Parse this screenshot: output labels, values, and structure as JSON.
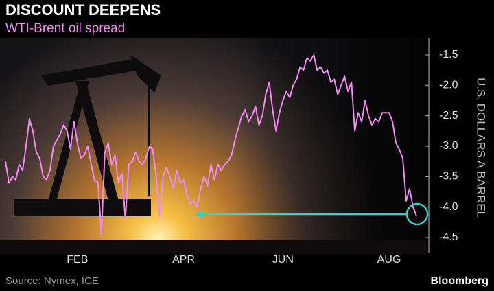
{
  "chart_data": {
    "type": "line",
    "title": "DISCOUNT DEEPENS",
    "subtitle": "WTI-Brent oil spread",
    "y_label": "U.S. DOLLARS A BARREL",
    "source": "Source: Nymex, ICE",
    "brand": "Bloomberg",
    "color": "#f28af2",
    "ylim": [
      -4.7,
      -1.2
    ],
    "yticks": [
      -1.5,
      {
        "value": -2,
        "label": "-2.0"
      },
      -2.5,
      {
        "value": -3,
        "label": "-3.0"
      },
      -3.5,
      {
        "value": -4,
        "label": "-4.0"
      },
      -4.5
    ],
    "categories": [
      null,
      null,
      null,
      null,
      null,
      null,
      null,
      null,
      null,
      null,
      null,
      null,
      null,
      null,
      null,
      null,
      null,
      null,
      null,
      null,
      null,
      "FEB",
      null,
      null,
      null,
      null,
      null,
      null,
      null,
      null,
      null,
      null,
      null,
      null,
      null,
      null,
      null,
      null,
      null,
      null,
      null,
      null,
      null,
      null,
      null,
      null,
      null,
      null,
      null,
      null,
      null,
      null,
      "APR",
      null,
      null,
      null,
      null,
      null,
      null,
      null,
      null,
      null,
      null,
      null,
      null,
      null,
      null,
      null,
      null,
      null,
      null,
      null,
      null,
      null,
      null,
      null,
      null,
      null,
      null,
      null,
      null,
      "JUN",
      null,
      null,
      null,
      null,
      null,
      null,
      null,
      null,
      null,
      null,
      null,
      null,
      null,
      null,
      null,
      null,
      null,
      null,
      null,
      null,
      null,
      null,
      null,
      null,
      null,
      null,
      null,
      null,
      null,
      null,
      "AUG",
      null,
      null,
      null,
      null,
      null,
      null,
      null,
      null
    ],
    "values": [
      -3.25,
      -3.6,
      -3.5,
      -3.55,
      -3.3,
      -3.4,
      -3.0,
      -2.55,
      -2.75,
      -3.1,
      -3.2,
      -3.5,
      -3.55,
      -3.4,
      -3.0,
      -2.9,
      -2.8,
      -2.65,
      -2.75,
      -3.05,
      -2.6,
      -2.95,
      -3.2,
      -3.15,
      -3.0,
      -3.3,
      -3.55,
      -3.6,
      -4.45,
      -3.1,
      -2.95,
      -3.3,
      -3.15,
      -3.6,
      -3.45,
      -4.2,
      -3.3,
      -3.25,
      -3.1,
      -3.25,
      -3.3,
      -3.2,
      -3.0,
      -3.05,
      -3.5,
      -4.15,
      -3.5,
      -3.35,
      -3.5,
      -3.7,
      -3.4,
      -3.6,
      -3.55,
      -3.8,
      -3.95,
      -3.9,
      -4.0,
      -3.7,
      -3.5,
      -3.65,
      -3.3,
      -3.55,
      -3.3,
      -3.4,
      -3.3,
      -3.25,
      -3.15,
      -2.9,
      -2.7,
      -2.5,
      -2.4,
      -2.6,
      -2.5,
      -2.35,
      -2.65,
      -2.5,
      -2.15,
      -1.95,
      -2.4,
      -2.75,
      -2.45,
      -2.25,
      -2.1,
      -2.2,
      -2.0,
      -1.9,
      -1.7,
      -1.75,
      -1.55,
      -1.6,
      -1.5,
      -1.75,
      -1.7,
      -1.8,
      -1.75,
      -1.95,
      -1.9,
      -2.15,
      -2.0,
      -1.85,
      -2.1,
      -1.95,
      -2.75,
      -2.45,
      -2.6,
      -2.25,
      -2.5,
      -2.65,
      -2.55,
      -2.6,
      -2.45,
      -2.45,
      -2.45,
      -2.6,
      -2.95,
      -3.05,
      -3.2,
      -3.9,
      -3.7,
      -4.0,
      -4.15
    ]
  }
}
